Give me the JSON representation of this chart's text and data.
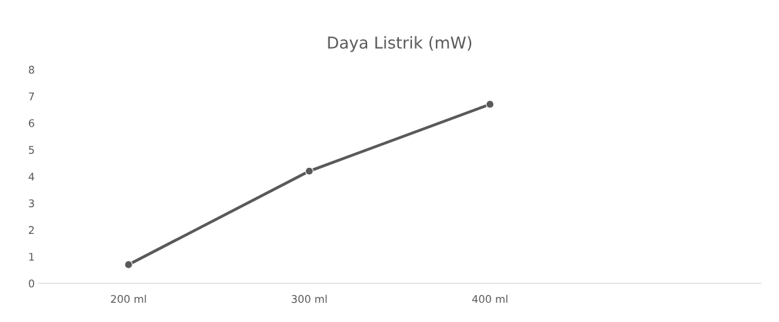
{
  "chart_data": {
    "type": "line",
    "title": "Daya Listrik (mW)",
    "categories": [
      "200 ml",
      "300 ml",
      "400 ml",
      null
    ],
    "series": [
      {
        "color": "#595959",
        "values": [
          0.7,
          4.2,
          6.7,
          null
        ]
      }
    ],
    "ylim": [
      0,
      8
    ],
    "yticks": [
      0,
      1,
      2,
      3,
      4,
      5,
      6,
      7,
      8
    ],
    "grid": false,
    "marker": "circle",
    "line_style": "solid"
  }
}
